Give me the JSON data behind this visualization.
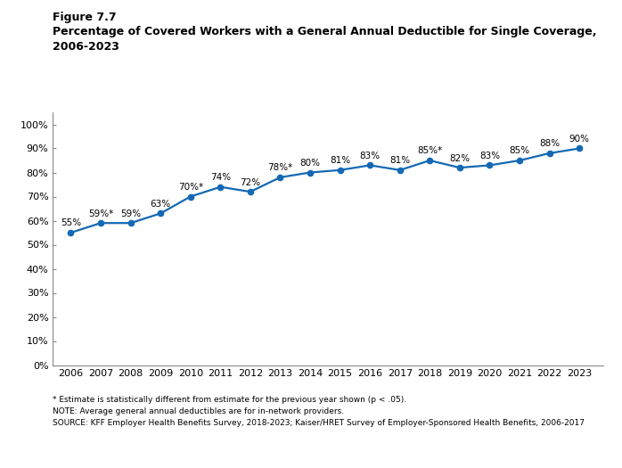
{
  "years": [
    2006,
    2007,
    2008,
    2009,
    2010,
    2011,
    2012,
    2013,
    2014,
    2015,
    2016,
    2017,
    2018,
    2019,
    2020,
    2021,
    2022,
    2023
  ],
  "values": [
    55,
    59,
    59,
    63,
    70,
    74,
    72,
    78,
    80,
    81,
    83,
    81,
    85,
    82,
    83,
    85,
    88,
    90
  ],
  "labels": [
    "55%",
    "59%*",
    "59%",
    "63%",
    "70%*",
    "74%",
    "72%",
    "78%*",
    "80%",
    "81%",
    "83%",
    "81%",
    "85%*",
    "82%",
    "83%",
    "85%",
    "88%",
    "90%"
  ],
  "line_color": "#1469b4",
  "marker_color": "#1469b4",
  "title_line1": "Figure 7.7",
  "title_line2": "Percentage of Covered Workers with a General Annual Deductible for Single Coverage,",
  "title_line3": "2006-2023",
  "footnote1": "* Estimate is statistically different from estimate for the previous year shown (p < .05).",
  "footnote2": "NOTE: Average general annual deductibles are for in-network providers.",
  "footnote3": "SOURCE: KFF Employer Health Benefits Survey, 2018-2023; Kaiser/HRET Survey of Employer-Sponsored Health Benefits, 2006-2017",
  "ylim": [
    0,
    105
  ],
  "yticks": [
    0,
    10,
    20,
    30,
    40,
    50,
    60,
    70,
    80,
    90,
    100
  ],
  "ytick_labels": [
    "0%",
    "10%",
    "20%",
    "30%",
    "40%",
    "50%",
    "60%",
    "70%",
    "80%",
    "90%",
    "100%"
  ],
  "background_color": "#ffffff",
  "label_fontsize": 7.5,
  "axis_fontsize": 8,
  "title1_fontsize": 9,
  "title2_fontsize": 9,
  "footnote_fontsize": 6.5
}
